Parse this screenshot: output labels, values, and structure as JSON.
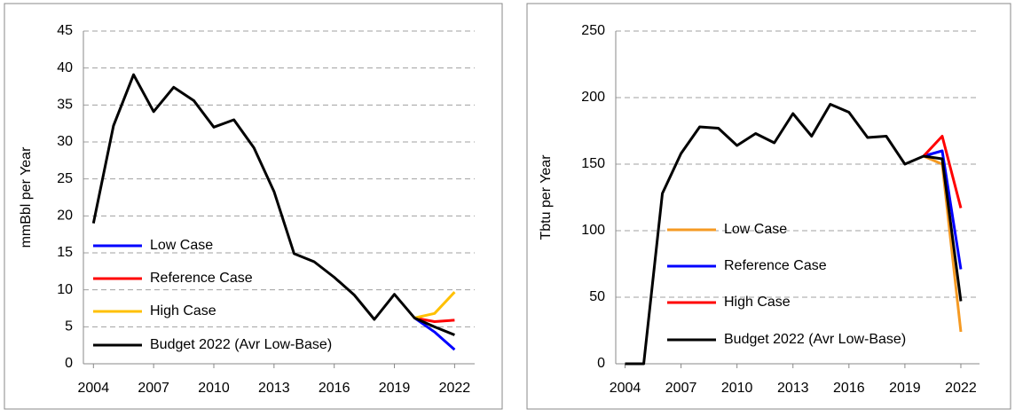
{
  "chart_data": [
    {
      "type": "line",
      "y_label": "mmBbl per Year",
      "x": [
        2004,
        2005,
        2006,
        2007,
        2008,
        2009,
        2010,
        2011,
        2012,
        2013,
        2014,
        2015,
        2016,
        2017,
        2018,
        2019,
        2020,
        2021,
        2022
      ],
      "xlim": [
        2003.5,
        2023
      ],
      "xticks": [
        2004,
        2007,
        2010,
        2013,
        2016,
        2019,
        2022
      ],
      "ylim": [
        0,
        45
      ],
      "yticks": [
        0,
        5,
        10,
        15,
        20,
        25,
        30,
        35,
        40,
        45
      ],
      "grid": true,
      "legend": "lower left",
      "series": [
        {
          "name": "Low Case",
          "color": "#0000ff",
          "values": [
            null,
            null,
            null,
            null,
            null,
            null,
            null,
            null,
            null,
            null,
            null,
            null,
            null,
            null,
            null,
            null,
            6.2,
            4.3,
            1.9
          ]
        },
        {
          "name": "Reference Case",
          "color": "#ff0000",
          "values": [
            null,
            null,
            null,
            null,
            null,
            null,
            null,
            null,
            null,
            null,
            null,
            null,
            null,
            null,
            null,
            null,
            6.2,
            5.7,
            5.9
          ]
        },
        {
          "name": "High Case",
          "color": "#ffc000",
          "values": [
            null,
            null,
            null,
            null,
            null,
            null,
            null,
            null,
            null,
            null,
            null,
            null,
            null,
            null,
            null,
            null,
            6.2,
            6.8,
            9.7
          ]
        },
        {
          "name": "Budget 2022 (Avr Low-Base)",
          "color": "#000000",
          "values": [
            19,
            32.2,
            39.1,
            34.1,
            37.4,
            35.6,
            32,
            33,
            29.2,
            23.3,
            14.9,
            13.8,
            11.7,
            9.3,
            6,
            9.4,
            6.2,
            5,
            3.9
          ]
        }
      ]
    },
    {
      "type": "line",
      "y_label": "Tbtu per Year",
      "x": [
        2004,
        2005,
        2006,
        2007,
        2008,
        2009,
        2010,
        2011,
        2012,
        2013,
        2014,
        2015,
        2016,
        2017,
        2018,
        2019,
        2020,
        2021,
        2022
      ],
      "xlim": [
        2003.5,
        2023
      ],
      "xticks": [
        2004,
        2007,
        2010,
        2013,
        2016,
        2019,
        2022
      ],
      "ylim": [
        0,
        250
      ],
      "yticks": [
        0,
        50,
        100,
        150,
        200,
        250
      ],
      "grid": true,
      "legend": "lower left",
      "series": [
        {
          "name": "Low Case",
          "color": "#f59a23",
          "values": [
            null,
            null,
            null,
            null,
            null,
            null,
            null,
            null,
            null,
            null,
            null,
            null,
            null,
            null,
            null,
            null,
            156,
            150,
            24
          ]
        },
        {
          "name": "Reference Case",
          "color": "#0000ff",
          "values": [
            null,
            null,
            null,
            null,
            null,
            null,
            null,
            null,
            null,
            null,
            null,
            null,
            null,
            null,
            null,
            null,
            156,
            160,
            71
          ]
        },
        {
          "name": "High Case",
          "color": "#ff0000",
          "values": [
            null,
            null,
            null,
            null,
            null,
            null,
            null,
            null,
            null,
            null,
            null,
            null,
            null,
            null,
            null,
            null,
            156,
            171,
            117
          ]
        },
        {
          "name": "Budget 2022 (Avr Low-Base)",
          "color": "#000000",
          "values": [
            0,
            0,
            128,
            158,
            178,
            177,
            164,
            173,
            166,
            188,
            171,
            195,
            189,
            170,
            171,
            150,
            156,
            154,
            47
          ]
        }
      ]
    }
  ]
}
